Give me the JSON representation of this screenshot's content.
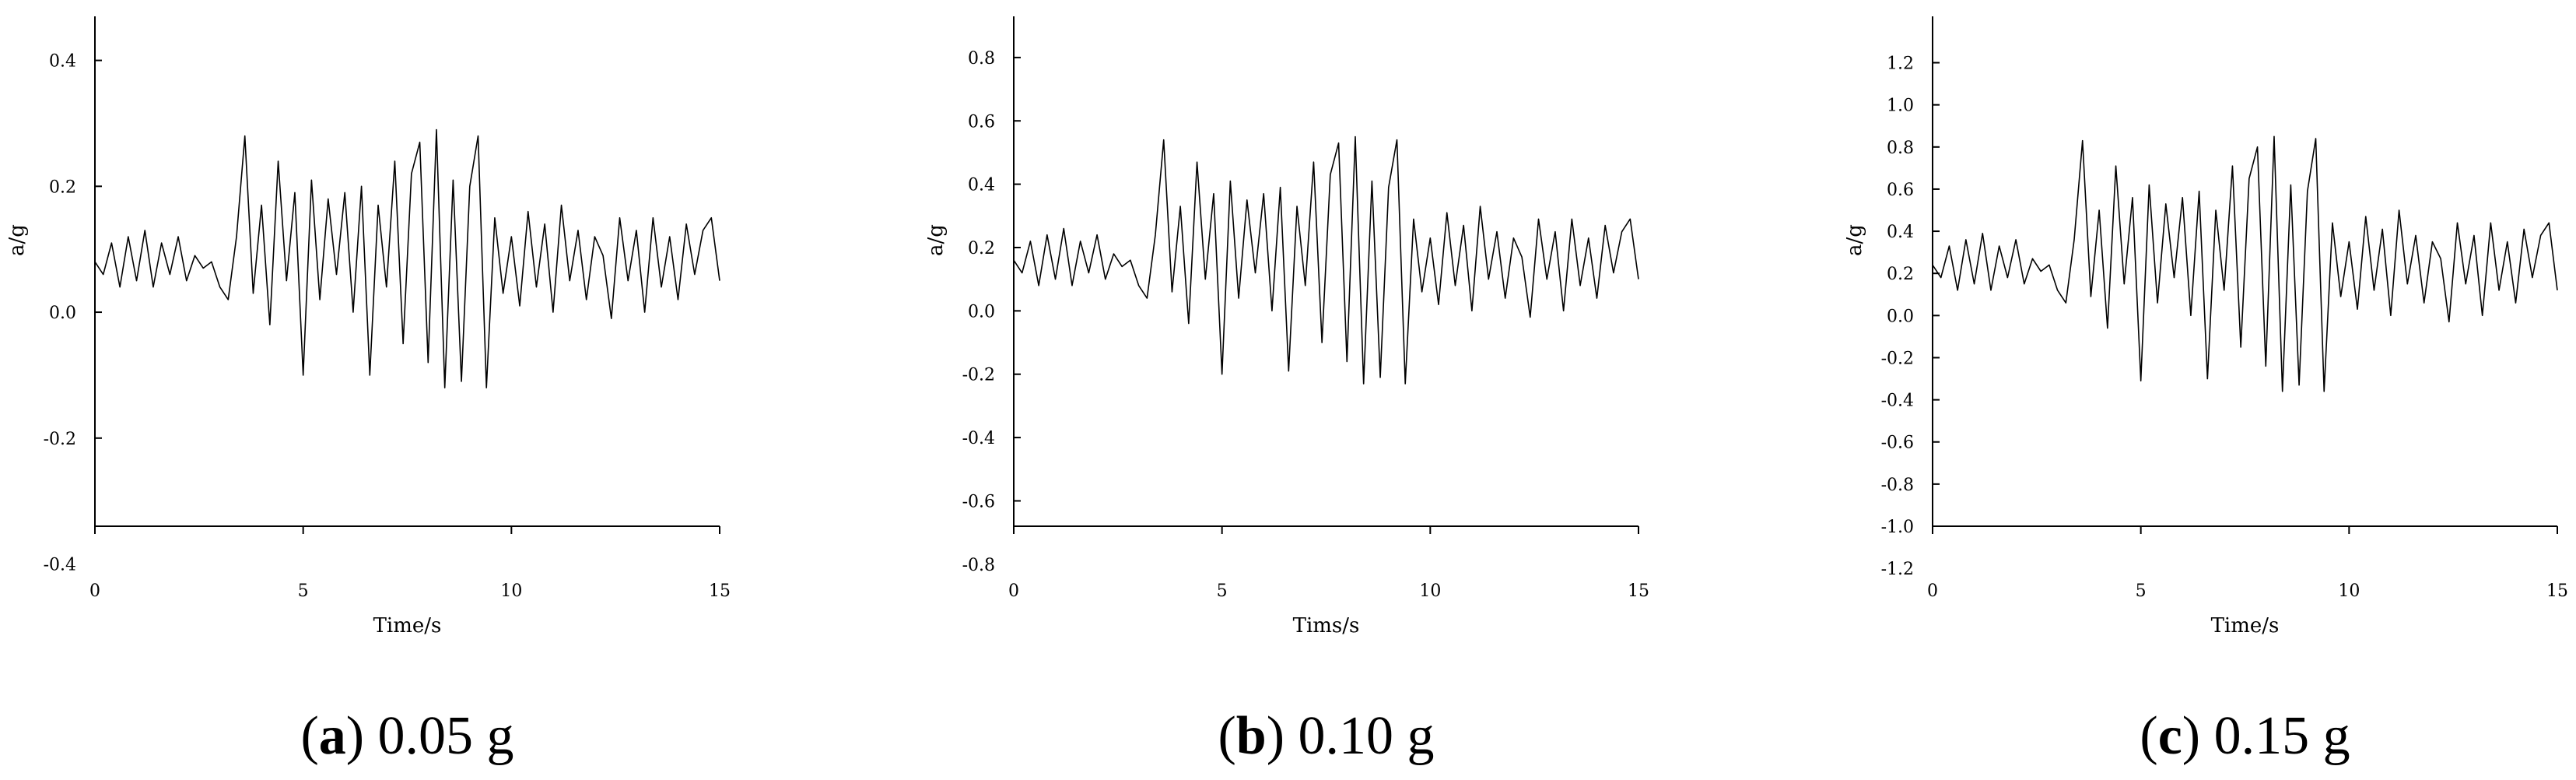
{
  "chart_data": [
    {
      "type": "line",
      "xlabel": "Time/s",
      "ylabel": "a/g",
      "caption": [
        "(",
        "a",
        ") 0.05 g"
      ],
      "xlim": [
        0,
        15
      ],
      "xticks": [
        0,
        5,
        10,
        15
      ],
      "ylim": [
        -0.34,
        0.47
      ],
      "yticks": [
        -0.4,
        -0.2,
        {
          "value": 0,
          "label": "0.0"
        },
        0.2,
        0.4
      ],
      "color": "#000000",
      "x": [
        0,
        0.2,
        0.4,
        0.6,
        0.8,
        1,
        1.2,
        1.4,
        1.6,
        1.8,
        2,
        2.2,
        2.4,
        2.6,
        2.8,
        3,
        3.2,
        3.4,
        3.6,
        3.8,
        4,
        4.2,
        4.4,
        4.6,
        4.8,
        5,
        5.2,
        5.4,
        5.6,
        5.8,
        6,
        6.2,
        6.4,
        6.6,
        6.8,
        7,
        7.2,
        7.4,
        7.6,
        7.8,
        8,
        8.2,
        8.4,
        8.6,
        8.8,
        9,
        9.2,
        9.4,
        9.6,
        9.8,
        10,
        10.2,
        10.4,
        10.6,
        10.8,
        11,
        11.2,
        11.4,
        11.6,
        11.8,
        12,
        12.2,
        12.4,
        12.6,
        12.8,
        13,
        13.2,
        13.4,
        13.6,
        13.8,
        14,
        14.2,
        14.4,
        14.6,
        14.8,
        15
      ],
      "values": [
        0.08,
        0.06,
        0.11,
        0.04,
        0.12,
        0.05,
        0.13,
        0.04,
        0.11,
        0.06,
        0.12,
        0.05,
        0.09,
        0.07,
        0.08,
        0.04,
        0.02,
        0.12,
        0.28,
        0.03,
        0.17,
        -0.02,
        0.24,
        0.05,
        0.19,
        -0.1,
        0.21,
        0.02,
        0.18,
        0.06,
        0.19,
        0,
        0.2,
        -0.1,
        0.17,
        0.04,
        0.24,
        -0.05,
        0.22,
        0.27,
        -0.08,
        0.29,
        -0.12,
        0.21,
        -0.11,
        0.2,
        0.28,
        -0.12,
        0.15,
        0.03,
        0.12,
        0.01,
        0.16,
        0.04,
        0.14,
        0,
        0.17,
        0.05,
        0.13,
        0.02,
        0.12,
        0.09,
        -0.01,
        0.15,
        0.05,
        0.13,
        0,
        0.15,
        0.04,
        0.12,
        0.02,
        0.14,
        0.06,
        0.13,
        0.15,
        0.05
      ]
    },
    {
      "type": "line",
      "xlabel": "Tims/s",
      "ylabel": "a/g",
      "caption": [
        "(",
        "b",
        ") 0.10 g"
      ],
      "xlim": [
        0,
        15
      ],
      "xticks": [
        0,
        5,
        10,
        15
      ],
      "ylim": [
        -0.68,
        0.93
      ],
      "yticks": [
        -0.8,
        -0.6,
        -0.4,
        -0.2,
        {
          "value": 0,
          "label": "0.0"
        },
        0.2,
        0.4,
        0.6,
        0.8
      ],
      "color": "#000000",
      "x": [
        0,
        0.2,
        0.4,
        0.6,
        0.8,
        1,
        1.2,
        1.4,
        1.6,
        1.8,
        2,
        2.2,
        2.4,
        2.6,
        2.8,
        3,
        3.2,
        3.4,
        3.6,
        3.8,
        4,
        4.2,
        4.4,
        4.6,
        4.8,
        5,
        5.2,
        5.4,
        5.6,
        5.8,
        6,
        6.2,
        6.4,
        6.6,
        6.8,
        7,
        7.2,
        7.4,
        7.6,
        7.8,
        8,
        8.2,
        8.4,
        8.6,
        8.8,
        9,
        9.2,
        9.4,
        9.6,
        9.8,
        10,
        10.2,
        10.4,
        10.6,
        10.8,
        11,
        11.2,
        11.4,
        11.6,
        11.8,
        12,
        12.2,
        12.4,
        12.6,
        12.8,
        13,
        13.2,
        13.4,
        13.6,
        13.8,
        14,
        14.2,
        14.4,
        14.6,
        14.8,
        15
      ],
      "values": [
        0.16,
        0.12,
        0.22,
        0.08,
        0.24,
        0.1,
        0.26,
        0.08,
        0.22,
        0.12,
        0.24,
        0.1,
        0.18,
        0.14,
        0.16,
        0.08,
        0.04,
        0.24,
        0.54,
        0.06,
        0.33,
        -0.04,
        0.47,
        0.1,
        0.37,
        -0.2,
        0.41,
        0.04,
        0.35,
        0.12,
        0.37,
        0,
        0.39,
        -0.19,
        0.33,
        0.08,
        0.47,
        -0.1,
        0.43,
        0.53,
        -0.16,
        0.55,
        -0.23,
        0.41,
        -0.21,
        0.39,
        0.54,
        -0.23,
        0.29,
        0.06,
        0.23,
        0.02,
        0.31,
        0.08,
        0.27,
        0,
        0.33,
        0.1,
        0.25,
        0.04,
        0.23,
        0.17,
        -0.02,
        0.29,
        0.1,
        0.25,
        0,
        0.29,
        0.08,
        0.23,
        0.04,
        0.27,
        0.12,
        0.25,
        0.29,
        0.1
      ]
    },
    {
      "type": "line",
      "xlabel": "Time/s",
      "ylabel": "a/g",
      "caption": [
        "(",
        "c",
        ") 0.15 g"
      ],
      "xlim": [
        0,
        15
      ],
      "xticks": [
        0,
        5,
        10,
        15
      ],
      "ylim": [
        -1.0,
        1.42
      ],
      "yticks": [
        -1.2,
        {
          "value": -1,
          "label": "-1.0"
        },
        -0.8,
        -0.6,
        -0.4,
        -0.2,
        {
          "value": 0,
          "label": "0.0"
        },
        0.2,
        0.4,
        0.6,
        0.8,
        {
          "value": 1,
          "label": "1.0"
        },
        1.2
      ],
      "color": "#000000",
      "x": [
        0,
        0.2,
        0.4,
        0.6,
        0.8,
        1,
        1.2,
        1.4,
        1.6,
        1.8,
        2,
        2.2,
        2.4,
        2.6,
        2.8,
        3,
        3.2,
        3.4,
        3.6,
        3.8,
        4,
        4.2,
        4.4,
        4.6,
        4.8,
        5,
        5.2,
        5.4,
        5.6,
        5.8,
        6,
        6.2,
        6.4,
        6.6,
        6.8,
        7,
        7.2,
        7.4,
        7.6,
        7.8,
        8,
        8.2,
        8.4,
        8.6,
        8.8,
        9,
        9.2,
        9.4,
        9.6,
        9.8,
        10,
        10.2,
        10.4,
        10.6,
        10.8,
        11,
        11.2,
        11.4,
        11.6,
        11.8,
        12,
        12.2,
        12.4,
        12.6,
        12.8,
        13,
        13.2,
        13.4,
        13.6,
        13.8,
        14,
        14.2,
        14.4,
        14.6,
        14.8,
        15
      ],
      "values": [
        0.24,
        0.18,
        0.33,
        0.12,
        0.36,
        0.15,
        0.39,
        0.12,
        0.33,
        0.18,
        0.36,
        0.15,
        0.27,
        0.21,
        0.24,
        0.12,
        0.06,
        0.36,
        0.83,
        0.09,
        0.5,
        -0.06,
        0.71,
        0.15,
        0.56,
        -0.31,
        0.62,
        0.06,
        0.53,
        0.18,
        0.56,
        0,
        0.59,
        -0.3,
        0.5,
        0.12,
        0.71,
        -0.15,
        0.65,
        0.8,
        -0.24,
        0.85,
        -0.36,
        0.62,
        -0.33,
        0.59,
        0.84,
        -0.36,
        0.44,
        0.09,
        0.35,
        0.03,
        0.47,
        0.12,
        0.41,
        0,
        0.5,
        0.15,
        0.38,
        0.06,
        0.35,
        0.27,
        -0.03,
        0.44,
        0.15,
        0.38,
        0,
        0.44,
        0.12,
        0.35,
        0.06,
        0.41,
        0.18,
        0.38,
        0.44,
        0.12
      ]
    }
  ]
}
